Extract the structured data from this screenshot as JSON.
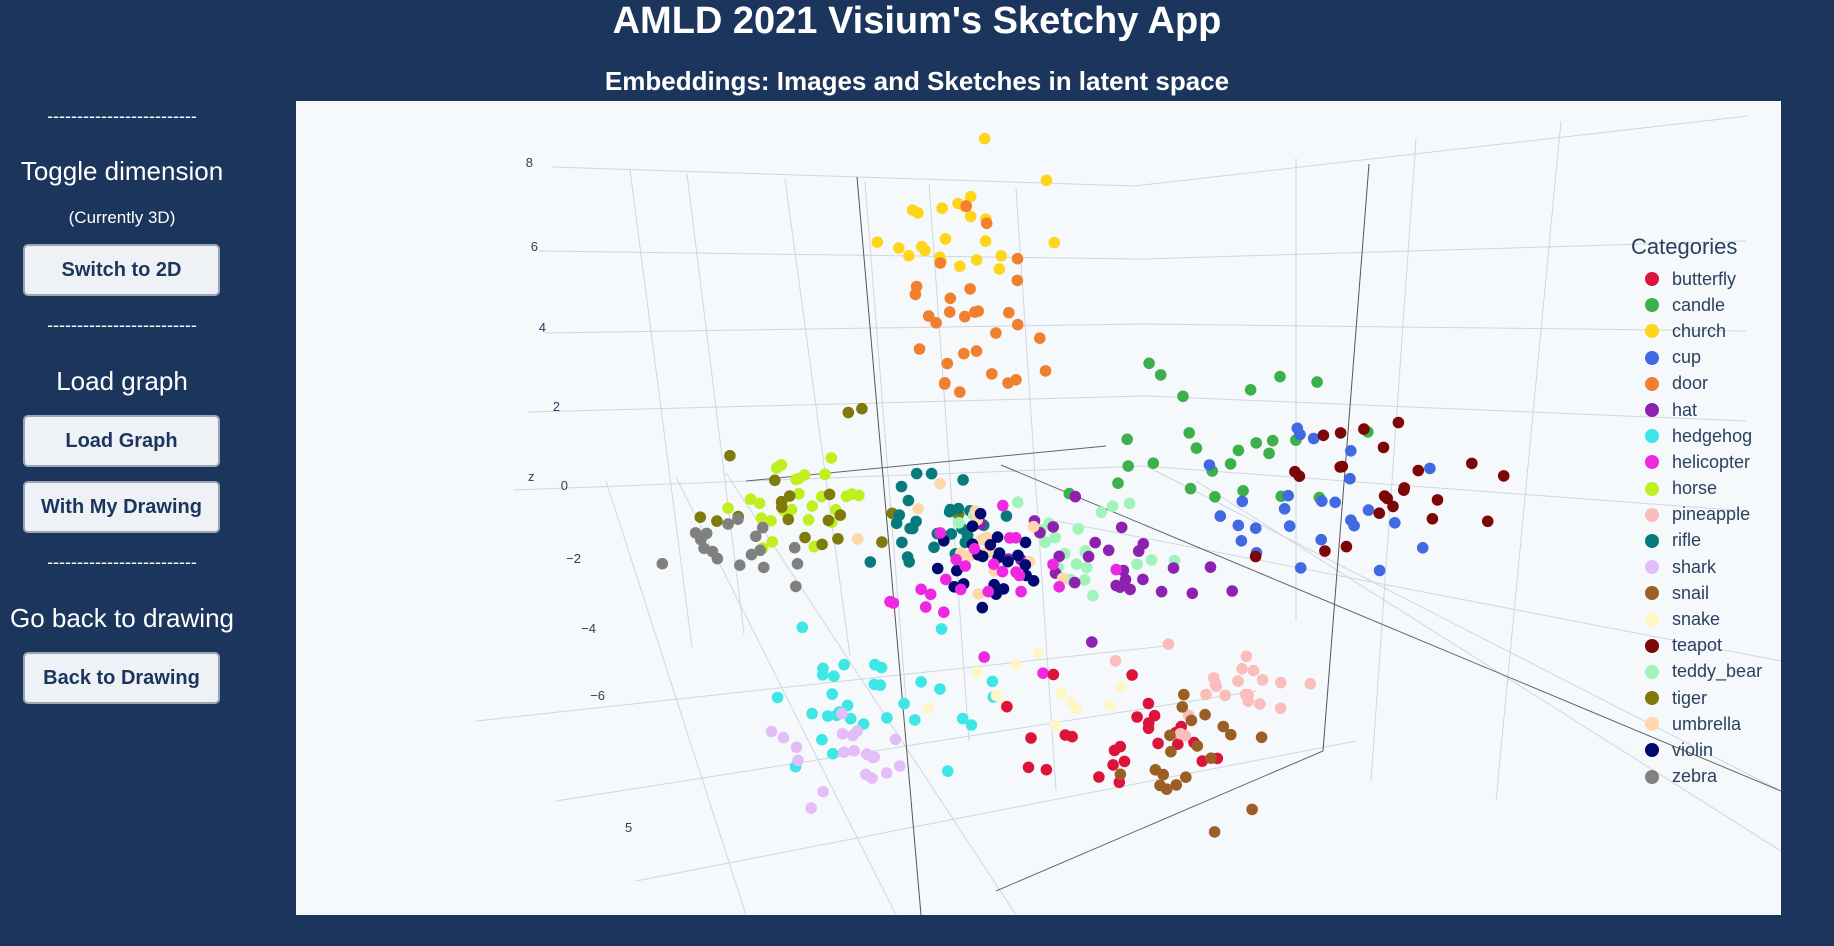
{
  "header": {
    "title": "AMLD 2021 Visium's Sketchy App",
    "subtitle": "Embeddings: Images and Sketches in latent space"
  },
  "sidebar": {
    "divider": "-------------------------",
    "toggle_title": "Toggle dimension",
    "toggle_note": "(Currently 3D)",
    "switch_button": "Switch to 2D",
    "load_title": "Load graph",
    "load_button": "Load Graph",
    "my_drawing_button": "With My Drawing",
    "back_title": "Go back to drawing",
    "back_button": "Back to Drawing"
  },
  "legend": {
    "title": "Categories",
    "items": [
      {
        "label": "butterfly",
        "color": "#dc143c"
      },
      {
        "label": "candle",
        "color": "#3cb04a"
      },
      {
        "label": "church",
        "color": "#ffd51a"
      },
      {
        "label": "cup",
        "color": "#4169e1"
      },
      {
        "label": "door",
        "color": "#f07f2e"
      },
      {
        "label": "hat",
        "color": "#8e22b0"
      },
      {
        "label": "hedgehog",
        "color": "#3ee6e6"
      },
      {
        "label": "helicopter",
        "color": "#ee28e0"
      },
      {
        "label": "horse",
        "color": "#bfef1f"
      },
      {
        "label": "pineapple",
        "color": "#fbbcbc"
      },
      {
        "label": "rifle",
        "color": "#067b7b"
      },
      {
        "label": "shark",
        "color": "#e3bdf8"
      },
      {
        "label": "snail",
        "color": "#9b5f25"
      },
      {
        "label": "snake",
        "color": "#fff6c8"
      },
      {
        "label": "teapot",
        "color": "#7b0707"
      },
      {
        "label": "teddy_bear",
        "color": "#a0f3b9"
      },
      {
        "label": "tiger",
        "color": "#7f7b0b"
      },
      {
        "label": "umbrella",
        "color": "#ffd7aa"
      },
      {
        "label": "violin",
        "color": "#000a6e"
      },
      {
        "label": "zebra",
        "color": "#808080"
      }
    ]
  },
  "chart_data": {
    "type": "scatter",
    "title": "",
    "zlabel": "z",
    "z_ticks": [
      "8",
      "6",
      "4",
      "2",
      "0",
      "−2",
      "−4",
      "−6"
    ],
    "x_ticks": [
      "5"
    ]
  }
}
